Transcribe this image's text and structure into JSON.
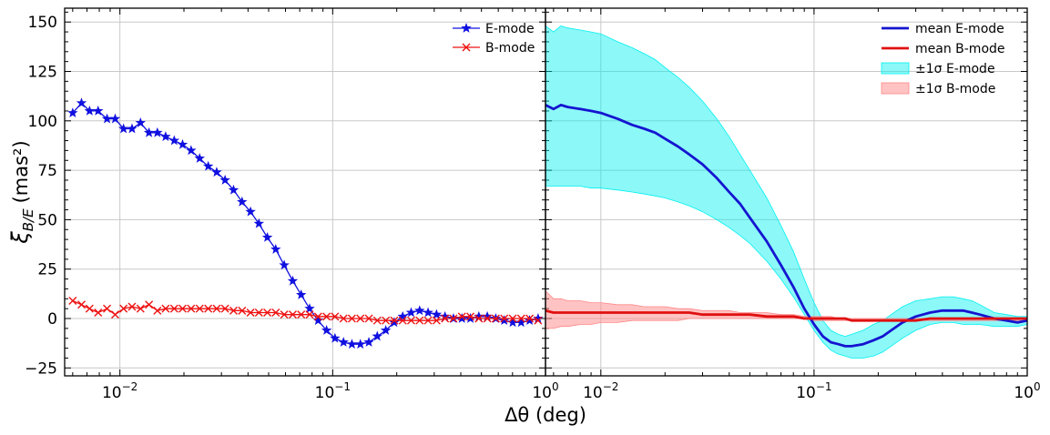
{
  "chart_data": [
    {
      "type": "line",
      "panel": "left",
      "xlabel": "Δθ (deg)",
      "ylabel": "ξ_B/E (mas²)",
      "x_scale": "log",
      "xlim": [
        0.0055,
        1.0
      ],
      "ylim": [
        -29,
        157
      ],
      "grid": true,
      "legend_position": "top-right",
      "y_ticks": [
        -25,
        0,
        25,
        50,
        75,
        100,
        125,
        150
      ],
      "x_tick_labels": [
        "10",
        "10",
        "10"
      ],
      "x_tick_exponents": [
        "−2",
        "−1",
        "0"
      ],
      "series": [
        {
          "name": "E-mode",
          "color": "#1010e0",
          "marker": "star",
          "x": [
            0.006,
            0.0066,
            0.0072,
            0.0079,
            0.0087,
            0.0095,
            0.0104,
            0.0114,
            0.0125,
            0.0137,
            0.015,
            0.0164,
            0.018,
            0.0197,
            0.0216,
            0.0237,
            0.026,
            0.0285,
            0.0312,
            0.0342,
            0.0375,
            0.0411,
            0.045,
            0.0493,
            0.054,
            0.0592,
            0.0649,
            0.0711,
            0.0779,
            0.0854,
            0.0936,
            0.1025,
            0.1124,
            0.1231,
            0.1349,
            0.1479,
            0.162,
            0.1776,
            0.1946,
            0.2133,
            0.2337,
            0.2561,
            0.2807,
            0.3076,
            0.3371,
            0.3694,
            0.4048,
            0.4437,
            0.4862,
            0.5328,
            0.5839,
            0.6399,
            0.7013,
            0.7685,
            0.8422,
            0.923
          ],
          "y": [
            104,
            109,
            105,
            105,
            101,
            101,
            96,
            96,
            99,
            94,
            94,
            92,
            90,
            88,
            85,
            81,
            77,
            74,
            70,
            65,
            59,
            54,
            48,
            41,
            35,
            27,
            19,
            12,
            5,
            -1,
            -6,
            -10,
            -12,
            -13,
            -13,
            -12,
            -9,
            -6,
            -2,
            1,
            3,
            4,
            3,
            2,
            1,
            0,
            0,
            0,
            1,
            1,
            0,
            -1,
            -2,
            -2,
            -1,
            0
          ]
        },
        {
          "name": "B-mode",
          "color": "#ee1111",
          "marker": "x",
          "x": [
            0.006,
            0.0066,
            0.0072,
            0.0079,
            0.0087,
            0.0095,
            0.0104,
            0.0114,
            0.0125,
            0.0137,
            0.015,
            0.0164,
            0.018,
            0.0197,
            0.0216,
            0.0237,
            0.026,
            0.0285,
            0.0312,
            0.0342,
            0.0375,
            0.0411,
            0.045,
            0.0493,
            0.054,
            0.0592,
            0.0649,
            0.0711,
            0.0779,
            0.0854,
            0.0936,
            0.1025,
            0.1124,
            0.1231,
            0.1349,
            0.1479,
            0.162,
            0.1776,
            0.1946,
            0.2133,
            0.2337,
            0.2561,
            0.2807,
            0.3076,
            0.3371,
            0.3694,
            0.4048,
            0.4437,
            0.4862,
            0.5328,
            0.5839,
            0.6399,
            0.7013,
            0.7685,
            0.8422,
            0.923
          ],
          "y": [
            9,
            7,
            5,
            3,
            5,
            2,
            5,
            6,
            5,
            7,
            4,
            5,
            5,
            5,
            5,
            5,
            5,
            5,
            5,
            4,
            4,
            3,
            3,
            3,
            3,
            2,
            2,
            2,
            2,
            1,
            1,
            1,
            0,
            0,
            0,
            0,
            -1,
            -1,
            -1,
            -1,
            -1,
            -1,
            -1,
            -1,
            0,
            0,
            1,
            1,
            0,
            0,
            0,
            0,
            0,
            0,
            0,
            -1
          ]
        }
      ]
    },
    {
      "type": "area",
      "panel": "right",
      "x_scale": "log",
      "xlim": [
        0.0055,
        1.0
      ],
      "ylim": [
        -29,
        157
      ],
      "grid": true,
      "legend_position": "top-right",
      "x_tick_labels": [
        "10",
        "10",
        "10"
      ],
      "x_tick_exponents": [
        "−2",
        "−1",
        "0"
      ],
      "x": [
        0.0055,
        0.006,
        0.0065,
        0.007,
        0.008,
        0.009,
        0.01,
        0.012,
        0.014,
        0.016,
        0.018,
        0.02,
        0.023,
        0.026,
        0.03,
        0.035,
        0.04,
        0.045,
        0.05,
        0.06,
        0.07,
        0.08,
        0.09,
        0.1,
        0.11,
        0.12,
        0.13,
        0.14,
        0.15,
        0.17,
        0.19,
        0.21,
        0.23,
        0.26,
        0.3,
        0.35,
        0.4,
        0.45,
        0.5,
        0.55,
        0.6,
        0.7,
        0.8,
        0.9,
        1.0
      ],
      "series": [
        {
          "name": "mean E-mode",
          "color": "#1515d0",
          "y": [
            108,
            106,
            108,
            107,
            106,
            105,
            104,
            101,
            98,
            96,
            94,
            91,
            87,
            83,
            78,
            71,
            64,
            58,
            51,
            39,
            27,
            16,
            5,
            -3,
            -9,
            -12,
            -13,
            -14,
            -14,
            -13,
            -11,
            -9,
            -6,
            -2,
            1,
            3,
            4,
            4,
            4,
            3,
            2,
            0,
            -1,
            -2,
            -1
          ]
        },
        {
          "name": "mean B-mode",
          "color": "#e01010",
          "y": [
            4,
            3,
            3,
            3,
            3,
            3,
            3,
            3,
            3,
            3,
            3,
            3,
            3,
            3,
            2,
            2,
            2,
            2,
            2,
            1,
            1,
            1,
            0,
            0,
            0,
            0,
            0,
            0,
            -1,
            -1,
            -1,
            -1,
            -1,
            -1,
            -1,
            0,
            0,
            0,
            0,
            0,
            0,
            0,
            0,
            0,
            0
          ]
        },
        {
          "name": "±1σ E-mode",
          "color": "#00f0f0",
          "type": "band",
          "lower": [
            67,
            67,
            67,
            67,
            67,
            66,
            66,
            65,
            64,
            63,
            62,
            61,
            59,
            57,
            54,
            50,
            46,
            42,
            38,
            29,
            20,
            11,
            2,
            -6,
            -12,
            -16,
            -18,
            -19,
            -20,
            -20,
            -19,
            -17,
            -14,
            -10,
            -6,
            -3,
            -2,
            -2,
            -3,
            -3,
            -3,
            -4,
            -4,
            -4,
            -3
          ],
          "upper": [
            148,
            145,
            148,
            147,
            146,
            145,
            144,
            140,
            137,
            134,
            131,
            127,
            122,
            117,
            110,
            101,
            92,
            83,
            75,
            61,
            47,
            34,
            20,
            8,
            -1,
            -6,
            -8,
            -9,
            -8,
            -6,
            -3,
            -1,
            2,
            6,
            9,
            10,
            11,
            11,
            10,
            9,
            7,
            3,
            2,
            1,
            1
          ]
        },
        {
          "name": "±1σ B-mode",
          "color": "#ff8888",
          "type": "band",
          "lower": [
            -5,
            -5,
            -4,
            -4,
            -3,
            -3,
            -2,
            -2,
            -1,
            -1,
            -1,
            -1,
            -1,
            0,
            0,
            0,
            0,
            0,
            0,
            0,
            0,
            0,
            0,
            -1,
            -1,
            -1,
            -1,
            -1,
            -1,
            -1,
            -1,
            -1,
            -1,
            -1,
            -1,
            -1,
            -1,
            -1,
            -1,
            -1,
            -1,
            -1,
            -1,
            -1,
            -1
          ],
          "upper": [
            14,
            10,
            10,
            9,
            9,
            8,
            8,
            7,
            7,
            6,
            6,
            6,
            5,
            5,
            4,
            4,
            4,
            3,
            3,
            3,
            2,
            2,
            1,
            1,
            1,
            1,
            0,
            0,
            0,
            0,
            0,
            0,
            0,
            0,
            0,
            0,
            0,
            0,
            0,
            0,
            0,
            0,
            0,
            0,
            0
          ]
        }
      ]
    }
  ]
}
